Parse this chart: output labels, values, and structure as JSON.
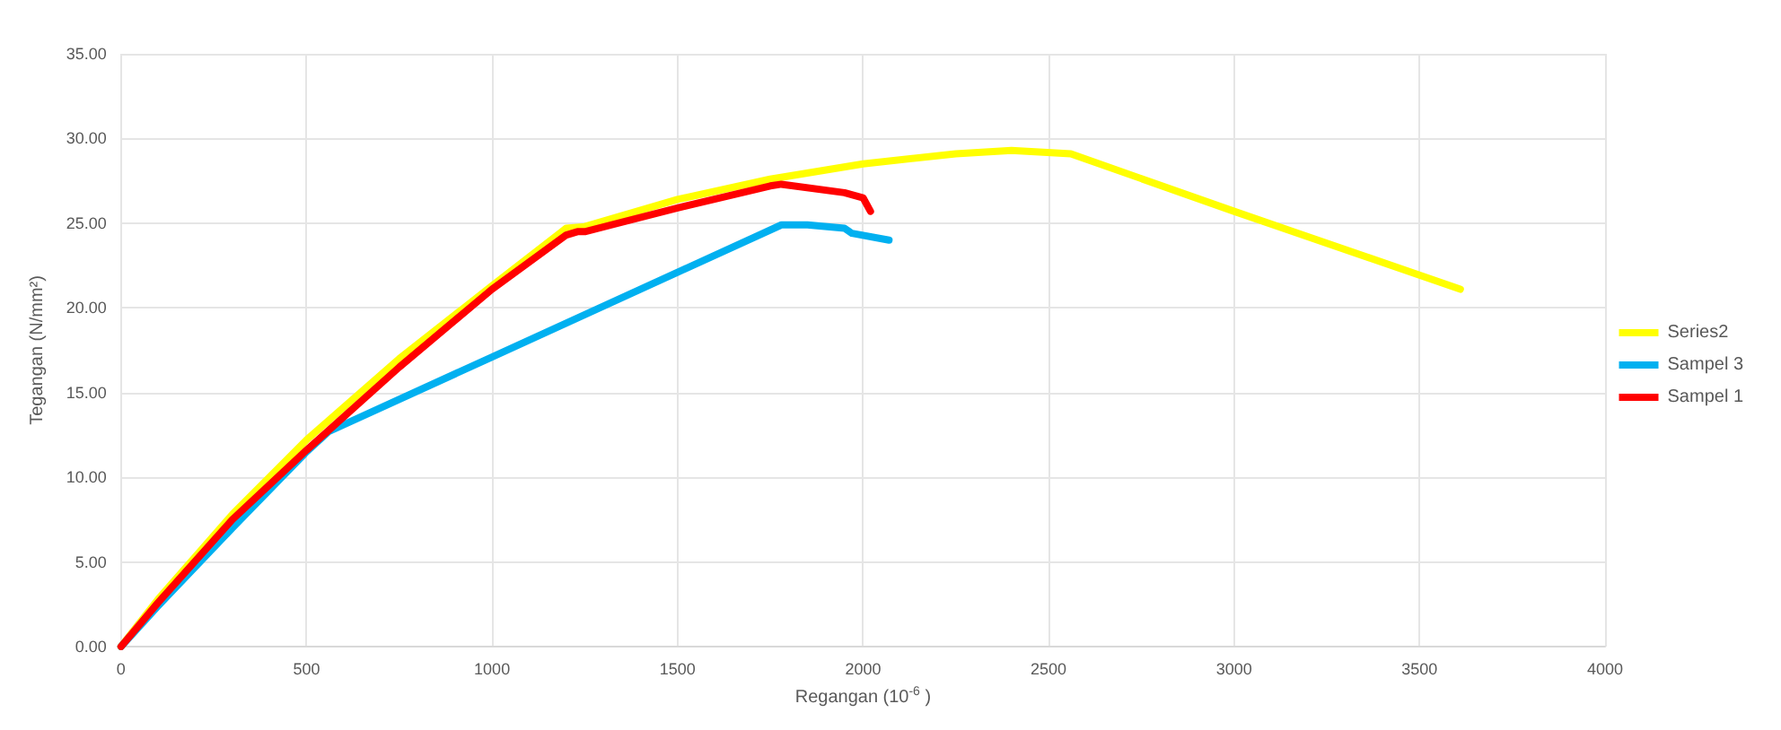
{
  "chart_data": {
    "type": "line",
    "xlabel": "Regangan (10$^{-6}$ )",
    "ylabel": "Tegangan (N/mm²)",
    "xlim": [
      0,
      4000
    ],
    "xticks": [
      0,
      500,
      1000,
      1500,
      2000,
      2500,
      3000,
      3500,
      4000
    ],
    "ylim": [
      0,
      35
    ],
    "yticks": [
      {
        "value": 0,
        "label": "0.00"
      },
      {
        "value": 5,
        "label": "5.00"
      },
      {
        "value": 10,
        "label": "10.00"
      },
      {
        "value": 15,
        "label": "15.00"
      },
      {
        "value": 20,
        "label": "20.00"
      },
      {
        "value": 25,
        "label": "25.00"
      },
      {
        "value": 30,
        "label": "30.00"
      },
      {
        "value": 35,
        "label": "35.00"
      }
    ],
    "grid": true,
    "legend": "right",
    "marker": "none",
    "line_style": "solid",
    "series": [
      {
        "name": "Series2",
        "color": "#ffff00",
        "x": [
          0,
          100,
          300,
          500,
          750,
          1000,
          1200,
          1250,
          1500,
          1750,
          2000,
          2250,
          2400,
          2560,
          3000,
          3610
        ],
        "values": [
          0,
          2.8,
          7.8,
          12.2,
          17,
          21.3,
          24.7,
          24.8,
          26.4,
          27.6,
          28.5,
          29.1,
          29.3,
          29.1,
          25.7,
          21.1
        ]
      },
      {
        "name": "Sampel 3",
        "color": "#00b0f0",
        "x": [
          0,
          100,
          300,
          500,
          560,
          1000,
          1500,
          1780,
          1850,
          1950,
          1970,
          2070
        ],
        "values": [
          0,
          2.4,
          7,
          11.5,
          12.7,
          17.1,
          22.1,
          24.9,
          24.9,
          24.7,
          24.4,
          24
        ]
      },
      {
        "name": "Sampel 1",
        "color": "#ff0000",
        "x": [
          0,
          100,
          300,
          500,
          750,
          1000,
          1200,
          1230,
          1250,
          1500,
          1750,
          1780,
          1950,
          2000,
          2020
        ],
        "values": [
          0,
          2.6,
          7.5,
          11.6,
          16.5,
          21.1,
          24.3,
          24.5,
          24.5,
          25.9,
          27.2,
          27.3,
          26.8,
          26.5,
          25.7
        ]
      }
    ]
  }
}
